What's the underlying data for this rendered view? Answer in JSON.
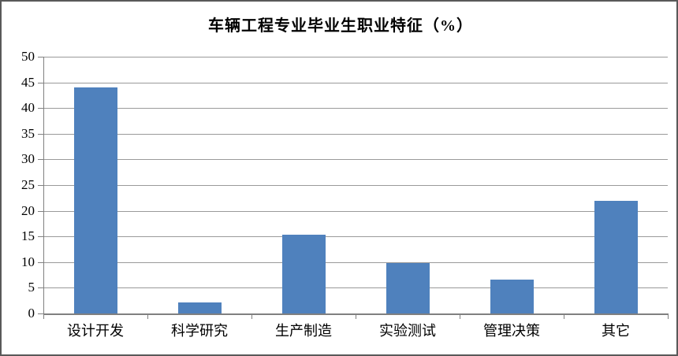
{
  "chart_data": {
    "type": "bar",
    "title": "车辆工程专业毕业生职业特征（%）",
    "categories": [
      "设计开发",
      "科学研究",
      "生产制造",
      "实验测试",
      "管理决策",
      "其它"
    ],
    "values": [
      44,
      2.2,
      15.4,
      9.8,
      6.6,
      22
    ],
    "xlabel": "",
    "ylabel": "",
    "ylim": [
      0,
      50
    ],
    "ytick_step": 5,
    "ytick_labels": [
      "0",
      "5",
      "10",
      "15",
      "20",
      "25",
      "30",
      "35",
      "40",
      "45",
      "50"
    ],
    "grid": true,
    "legend": false,
    "bar_color": "#4F81BD",
    "gridline_color": "#9a9a9a",
    "axis_color": "#808080",
    "frame_color": "#595959",
    "background_color": "#ffffff"
  }
}
